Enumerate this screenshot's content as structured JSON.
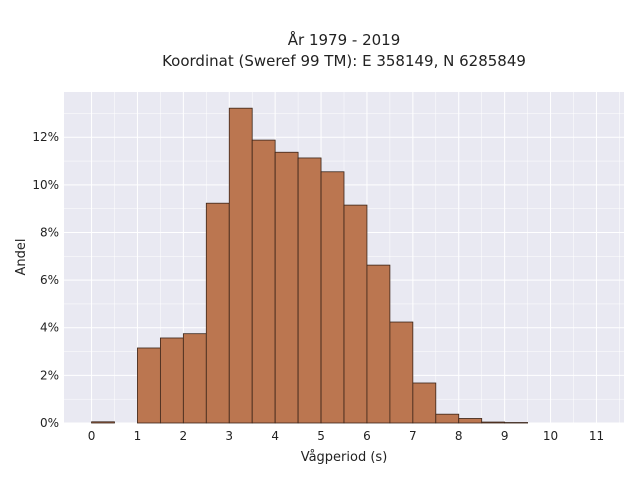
{
  "chart_data": {
    "type": "bar",
    "title_line1": "År 1979 - 2019",
    "title_line2": "Koordinat (Sweref 99 TM): E 358149, N 6285849",
    "xlabel": "Vågperiod (s)",
    "ylabel": "Andel",
    "xlim": [
      -0.6,
      11.6
    ],
    "ylim": [
      0,
      0.139
    ],
    "bin_width": 0.5,
    "x_ticks": [
      0,
      1,
      2,
      3,
      4,
      5,
      6,
      7,
      8,
      9,
      10,
      11
    ],
    "x_tick_labels": [
      "0",
      "1",
      "2",
      "3",
      "4",
      "5",
      "6",
      "7",
      "8",
      "9",
      "10",
      "11"
    ],
    "y_ticks": [
      0,
      0.02,
      0.04,
      0.06,
      0.08,
      0.1,
      0.12
    ],
    "y_tick_labels": [
      "0%",
      "2%",
      "4%",
      "6%",
      "8%",
      "10%",
      "12%"
    ],
    "bin_starts": [
      0,
      1,
      1.5,
      2,
      2.5,
      3,
      3.5,
      4,
      4.5,
      5,
      5.5,
      6,
      6.5,
      7,
      7.5,
      8,
      8.5,
      9
    ],
    "values": [
      0.0005,
      0.0315,
      0.0357,
      0.0375,
      0.0923,
      0.1322,
      0.1188,
      0.1137,
      0.1113,
      0.1055,
      0.0915,
      0.0663,
      0.0424,
      0.0168,
      0.0037,
      0.0019,
      0.0004,
      0.0002
    ],
    "grid": true,
    "colors": {
      "bar_fill": "#bb7650",
      "bar_edge": "#3a2418",
      "plot_bg": "#e9e9f2",
      "grid": "#ffffff"
    }
  }
}
